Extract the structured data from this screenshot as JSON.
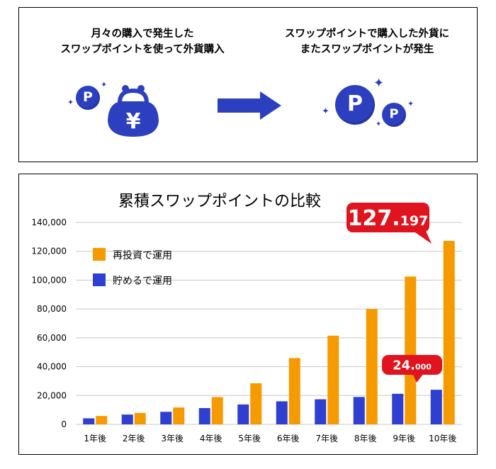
{
  "top": {
    "left_caption_line1": "月々の購入で発生した",
    "left_caption_line2": "スワップポイントを使って外貨購入",
    "right_caption_line1": "スワップポイントで購入した外貨に",
    "right_caption_line2": "またスワップポイントが発生",
    "coin_letter": "P",
    "yen_symbol": "¥"
  },
  "colors": {
    "accent_blue": "#2c3fbf",
    "bar_orange": "#f59a00",
    "bar_blue": "#2f3fcf",
    "callout_red": "#e0141e",
    "grid": "#c8c8c8"
  },
  "chart_data": {
    "type": "bar",
    "title": "累積スワップポイントの比較",
    "categories": [
      "1年後",
      "2年後",
      "3年後",
      "4年後",
      "5年後",
      "6年後",
      "7年後",
      "8年後",
      "9年後",
      "10年後"
    ],
    "series": [
      {
        "name": "再投資で運用",
        "color": "#f59a00",
        "values": [
          5800,
          7900,
          11700,
          18900,
          28500,
          46000,
          61500,
          80000,
          102500,
          127197
        ]
      },
      {
        "name": "貯めるで運用",
        "color": "#2f3fcf",
        "values": [
          4200,
          6800,
          8700,
          11300,
          13800,
          16000,
          17400,
          19000,
          21200,
          24000
        ]
      }
    ],
    "ylim": [
      0,
      140000
    ],
    "yticks": [
      "0",
      "20,000",
      "40,000",
      "60,000",
      "80,000",
      "100,000",
      "120,000",
      "140,000"
    ],
    "grid": true,
    "legend_position": "top-left",
    "annotations": [
      {
        "series": 0,
        "category": "10年後",
        "main": "127.",
        "small": "197"
      },
      {
        "series": 1,
        "category": "10年後",
        "main": "24.",
        "small": "000"
      }
    ]
  }
}
